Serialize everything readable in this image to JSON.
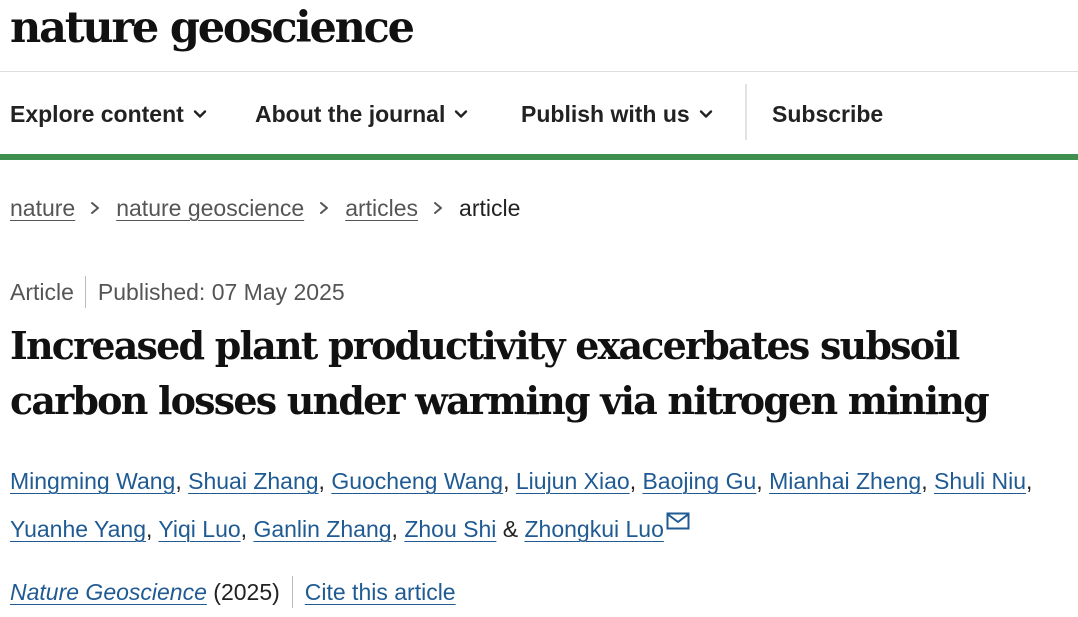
{
  "header": {
    "logo_text": "nature geoscience"
  },
  "nav": {
    "items": [
      {
        "label": "Explore content",
        "has_dropdown": true
      },
      {
        "label": "About the journal",
        "has_dropdown": true
      },
      {
        "label": "Publish with us",
        "has_dropdown": true
      },
      {
        "label": "Subscribe",
        "has_dropdown": false
      }
    ],
    "accent_color": "#3f8f4e"
  },
  "breadcrumb": {
    "items": [
      "nature",
      "nature geoscience",
      "articles"
    ],
    "current": "article"
  },
  "article": {
    "type": "Article",
    "published": "Published: 07 May 2025",
    "title": "Increased plant productivity exacerbates subsoil carbon losses under warming via nitrogen mining",
    "authors": [
      "Mingming Wang",
      "Shuai Zhang",
      "Guocheng Wang",
      "Liujun Xiao",
      "Baojing Gu",
      "Mianhai Zheng",
      "Shuli Niu",
      "Yuanhe Yang",
      "Yiqi Luo",
      "Ganlin Zhang",
      "Zhou Shi",
      "Zhongkui Luo"
    ],
    "author_separator": ", ",
    "last_author_joiner": "&",
    "corresponding_icon": "mail-icon",
    "journal": "Nature Geoscience",
    "year": "(2025)",
    "cite_label": "Cite this article",
    "link_color": "#1f5a93"
  }
}
